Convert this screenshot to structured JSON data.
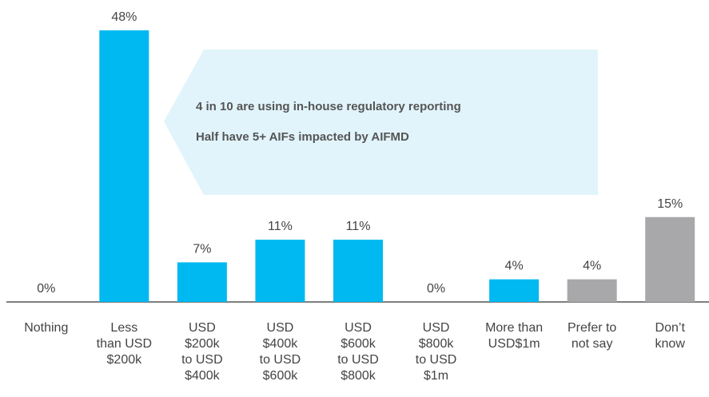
{
  "chart_data": {
    "type": "bar",
    "categories": [
      "Nothing",
      "Less\nthan USD\n$200k",
      "USD\n$200k\nto USD\n$400k",
      "USD\n$400k\nto USD\n$600k",
      "USD\n$600k\nto USD\n$800k",
      "USD\n$800k\nto USD\n$1m",
      "More than\nUSD$1m",
      "Prefer to\nnot say",
      "Don’t\nknow"
    ],
    "values": [
      0,
      48,
      7,
      11,
      11,
      0,
      4,
      4,
      15
    ],
    "value_labels": [
      "0%",
      "48%",
      "7%",
      "11%",
      "11%",
      "0%",
      "4%",
      "4%",
      "15%"
    ],
    "colors": [
      "#00b9f1",
      "#00b9f1",
      "#00b9f1",
      "#00b9f1",
      "#00b9f1",
      "#00b9f1",
      "#00b9f1",
      "#a8a8aa",
      "#a8a8aa"
    ],
    "ylim": [
      0,
      48
    ],
    "annotations": [
      "4 in 10 are using in-house regulatory reporting",
      "Half have 5+ AIFs impacted by AIFMD"
    ]
  }
}
